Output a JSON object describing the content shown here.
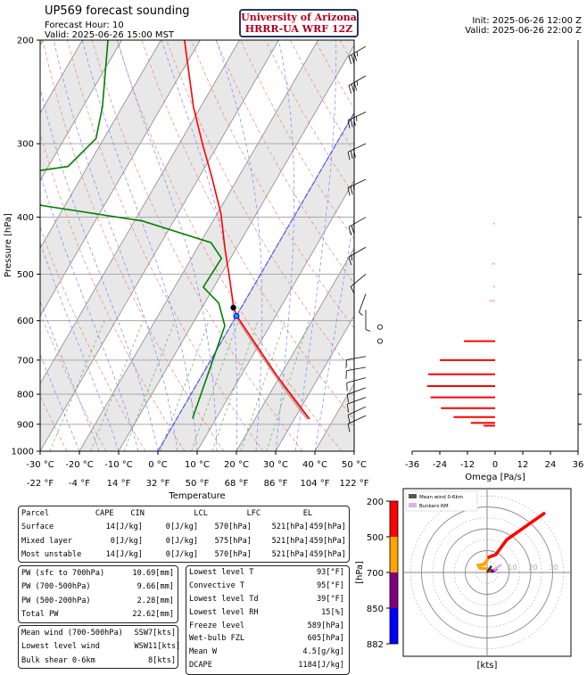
{
  "header": {
    "title": "UP569 forecast sounding",
    "forecast_hour": "Forecast Hour: 10",
    "valid_local": "Valid: 2025-06-26 15:00 MST",
    "logo_line1": "University of Arizona",
    "logo_line2": "HRRR-UA WRF 12Z",
    "init": "Init: 2025-06-26 12:00 Z",
    "valid_utc": "Valid: 2025-06-26 22:00 Z"
  },
  "chart_data": [
    {
      "type": "line",
      "name": "skew-t",
      "ylabel": "Pressure [hPa]",
      "xlabel": "Temperature",
      "yticks": [
        200,
        300,
        400,
        500,
        600,
        700,
        800,
        900,
        1000
      ],
      "xticks_c": [
        -30,
        -20,
        -10,
        0,
        10,
        20,
        30,
        40,
        50
      ],
      "xtick_c_labels": [
        "-30 °C",
        "-20 °C",
        "-10 °C",
        "0 °C",
        "10 °C",
        "20 °C",
        "30 °C",
        "40 °C",
        "50 °C"
      ],
      "xtick_f_labels": [
        "-22 °F",
        "-4 °F",
        "14 °F",
        "32 °F",
        "50 °F",
        "68 °F",
        "86 °F",
        "104 °F",
        "122 °F"
      ],
      "ylim": [
        1000,
        200
      ],
      "xlim_c": [
        -30,
        50
      ],
      "series": [
        {
          "name": "Temperature",
          "color": "#ff0000",
          "p": [
            882,
            742,
            588,
            569,
            504,
            454,
            395,
            343,
            299,
            260,
            200
          ],
          "t": [
            33.9,
            18.9,
            0,
            -2,
            -7.7,
            -12.7,
            -19,
            -26.6,
            -34.3,
            -41.8,
            -54
          ]
        },
        {
          "name": "Dewpoint",
          "color": "#008000",
          "p": [
            880,
            612,
            560,
            526,
            470,
            442,
            406,
            382,
            340,
            328,
            294,
            260,
            200
          ],
          "t": [
            4,
            -1.5,
            -6.4,
            -12.7,
            -12.3,
            -17.3,
            -38,
            -66,
            -80,
            -65,
            -62,
            -65,
            -73.5
          ]
        }
      ],
      "lcl_hpa": 570,
      "freeze_level_hpa": 589,
      "wind_barbs": [
        {
          "p": 205,
          "dir": 240,
          "spd": 35
        },
        {
          "p": 230,
          "dir": 240,
          "spd": 35
        },
        {
          "p": 265,
          "dir": 245,
          "spd": 35
        },
        {
          "p": 300,
          "dir": 245,
          "spd": 30
        },
        {
          "p": 345,
          "dir": 245,
          "spd": 25
        },
        {
          "p": 400,
          "dir": 240,
          "spd": 20
        },
        {
          "p": 450,
          "dir": 240,
          "spd": 15
        },
        {
          "p": 500,
          "dir": 230,
          "spd": 10
        },
        {
          "p": 540,
          "dir": 200,
          "spd": 5
        },
        {
          "p": 575,
          "dir": 180,
          "spd": 5
        },
        {
          "p": 615,
          "dir": 0,
          "spd": 0
        },
        {
          "p": 650,
          "dir": 0,
          "spd": 0
        },
        {
          "p": 690,
          "dir": 260,
          "spd": 10
        },
        {
          "p": 720,
          "dir": 260,
          "spd": 10
        },
        {
          "p": 750,
          "dir": 255,
          "spd": 10
        },
        {
          "p": 780,
          "dir": 250,
          "spd": 10
        },
        {
          "p": 810,
          "dir": 250,
          "spd": 10
        },
        {
          "p": 840,
          "dir": 245,
          "spd": 10
        },
        {
          "p": 870,
          "dir": 245,
          "spd": 10
        }
      ]
    },
    {
      "type": "bar",
      "name": "omega",
      "xlabel": "Omega [Pa/s]",
      "xlim": [
        -36,
        36
      ],
      "xticks": [
        -36,
        -24,
        -12,
        0,
        12,
        24,
        36
      ],
      "p": [
        410,
        480,
        525,
        555,
        650,
        700,
        740,
        775,
        810,
        845,
        875,
        895,
        905
      ],
      "values": [
        -1,
        -1.5,
        -1,
        -2.5,
        -13.5,
        -24,
        -29,
        -29.5,
        -28,
        -23.5,
        -18,
        -10.5,
        -5
      ]
    },
    {
      "type": "line",
      "name": "hodograph",
      "xlabel": "[kts]",
      "rings": [
        10,
        20,
        30
      ],
      "ring_labels": [
        "10",
        "20",
        "30"
      ],
      "legend": [
        "Mean wind 0-6km",
        "Bunkers RM"
      ],
      "colorbar": {
        "label": "[hPa]",
        "ticks": [
          "200",
          "500",
          "700",
          "850",
          "882"
        ],
        "colors": [
          "#ff0000",
          "#ffa500",
          "#800080",
          "#0000ff"
        ]
      },
      "segments": [
        {
          "layer": "882-850",
          "color": "#0000ff",
          "u": [
            2.5,
            2.8
          ],
          "v": [
            0.6,
            0.8
          ]
        },
        {
          "layer": "850-700",
          "color": "#800080",
          "u": [
            0.8,
            2.9,
            4
          ],
          "v": [
            0.8,
            0.8,
            1.6
          ]
        },
        {
          "layer": "700-500",
          "color": "#ffa500",
          "u": [
            0.8,
            0.4,
            -3.3,
            -4,
            -1.2,
            0,
            0.8
          ],
          "v": [
            0.8,
            1.6,
            2,
            3.3,
            3.7,
            5.7,
            7
          ]
        },
        {
          "layer": "500-200",
          "color": "#ff0000",
          "u": [
            0.8,
            4,
            9,
            26
          ],
          "v": [
            7,
            8.2,
            15,
            27
          ]
        }
      ],
      "mean_wind": {
        "u": 2,
        "v": 3
      },
      "bunkers_rm": {
        "u": 6.5,
        "v": 3.6
      }
    }
  ],
  "parcel_table": {
    "headers": [
      "Parcel",
      "CAPE",
      "CIN",
      "LCL",
      "LFC",
      "EL"
    ],
    "rows": [
      [
        "Surface",
        "14[J/kg]",
        "0[J/kg]",
        "570[hPa]",
        "521[hPa]",
        "459[hPa]"
      ],
      [
        "Mixed layer",
        "0[J/kg]",
        "0[J/kg]",
        "575[hPa]",
        "521[hPa]",
        "459[hPa]"
      ],
      [
        "Most unstable",
        "14[J/kg]",
        "0[J/kg]",
        "570[hPa]",
        "521[hPa]",
        "459[hPa]"
      ]
    ]
  },
  "pw_table": [
    [
      "PW (sfc to 700hPa)",
      "10.69[mm]"
    ],
    [
      "PW (700-500hPa)",
      "9.66[mm]"
    ],
    [
      "PW (500-200hPa)",
      "2.28[mm]"
    ],
    [
      "Total PW",
      "22.62[mm]"
    ]
  ],
  "wind_table": [
    [
      "Mean wind (700-500hPa)",
      "SSW",
      "7[kts]"
    ],
    [
      "Lowest level wind",
      "WSW",
      "11[kts]"
    ],
    [
      "Bulk shear 0-6km",
      "",
      "8[kts]"
    ]
  ],
  "thermo_table": [
    [
      "Lowest level T",
      "93[°F]"
    ],
    [
      "Convective T",
      "95[°F]"
    ],
    [
      "Lowest level Td",
      "39[°F]"
    ],
    [
      "Lowest level RH",
      "15[%]"
    ],
    [
      "Freeze level",
      "589[hPa]"
    ],
    [
      "Wet-bulb FZL",
      "605[hPa]"
    ],
    [
      "Mean W",
      "4.5[g/kg]"
    ],
    [
      "DCAPE",
      "1184[J/kg]"
    ]
  ]
}
